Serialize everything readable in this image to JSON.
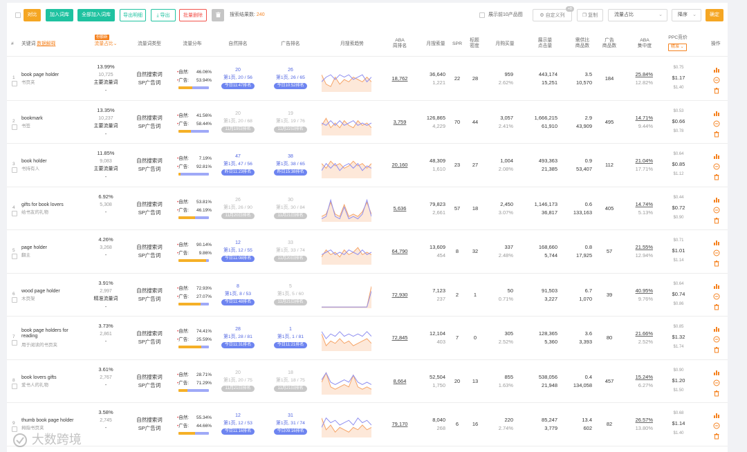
{
  "toolbar": {
    "compare": "对比",
    "add_to_lib": "加入词库",
    "add_all_to_lib": "全部加入词库",
    "export_detail": "导出明细",
    "export": "导出",
    "batch_delete": "批量删除",
    "result_label": "搜索结果数:",
    "result_count": "240",
    "top10_label": "展示前10产品图",
    "custom_col": "自定义列",
    "custom_col_badge": "+8",
    "copy": "复制",
    "sort_field": "流量占比",
    "sort_order": "降序",
    "confirm": "确定"
  },
  "header": {
    "num": "#",
    "keyword": "关键词",
    "data_explain": "数据解释",
    "share_tag": "份额新",
    "share": "流量占比",
    "type": "流量词类型",
    "distribution": "流量分布",
    "natural_rank": "自然排名",
    "ad_rank": "广告排名",
    "trend": "月搜索趋势",
    "aba_1": "ABA",
    "aba_2": "周排名",
    "monthly_search": "月搜索量",
    "spr": "SPR",
    "title_1": "标题",
    "title_2": "密度",
    "monthly_buy": "月购买量",
    "display_1": "展示量",
    "display_2": "点击量",
    "supply_1": "需供比",
    "supply_2": "商品数",
    "ads_1": "广告",
    "ads_2": "商品数",
    "abac_1": "ABA",
    "abac_2": "集中度",
    "ppc": "PPC竞价",
    "ppc_mode": "精准",
    "ops": "操作"
  },
  "rows": [
    {
      "num": "1",
      "kw": "book page holder",
      "kw_cn": "书页夹",
      "share": "13.99%",
      "share_sub": "10,725",
      "share_tag": "主要流量词",
      "share_dash": "-",
      "type1": "自然搜索词",
      "type2": "SP广告词",
      "nat_label": "自然:",
      "nat_pct": "46.06%",
      "ad_label": "广告:",
      "ad_pct": "53.94%",
      "nat_share": 0.46,
      "nr_pos": "20",
      "nr_line": "第1页, 20 / 56",
      "nr_pill": "今日11:47排名",
      "nr_active": true,
      "ar_pos": "26",
      "ar_line": "第1页, 26 / 65",
      "ar_pill": "今日10:52排名",
      "ar_active": true,
      "aba": "18,762",
      "ms": "36,640",
      "ms_sub": "1,221",
      "spr": "22",
      "title_d": "28",
      "mb": "959",
      "mb_pct": "2.62%",
      "disp": "443,174",
      "clk": "15,251",
      "sr": "3.5",
      "sr_n": "10,570",
      "ads": "184",
      "conc": "25.84%",
      "conc2": "12.82%",
      "ppc_h": "$0.75",
      "ppc": "$1.17",
      "ppc_l": "$1.40",
      "trend": [
        [
          0.7,
          0.3,
          0.2,
          0.6,
          0.3,
          0.5,
          0.4,
          0.6,
          0.5,
          0.4,
          0.6,
          0.4
        ],
        [
          0.4,
          0.6,
          0.7,
          0.5,
          0.7,
          0.6,
          0.7,
          0.5,
          0.6,
          0.7,
          0.4,
          0.6
        ]
      ]
    },
    {
      "num": "2",
      "kw": "bookmark",
      "kw_cn": "书签",
      "share": "13.35%",
      "share_sub": "10,237",
      "share_tag": "主要流量词",
      "share_dash": "-",
      "type1": "自然搜索词",
      "type2": "SP广告词",
      "nat_label": "自然:",
      "nat_pct": "41.56%",
      "ad_label": "广告:",
      "ad_pct": "58.44%",
      "nat_share": 0.42,
      "nr_pos": "20",
      "nr_line": "第1页, 20 / 68",
      "nr_pill": "11月19日排名",
      "nr_active": false,
      "ar_pos": "19",
      "ar_line": "第1页, 19 / 76",
      "ar_pill": "11月22日排名",
      "ar_active": false,
      "aba": "3,759",
      "ms": "126,865",
      "ms_sub": "4,229",
      "spr": "70",
      "title_d": "44",
      "mb": "3,057",
      "mb_pct": "2.41%",
      "disp": "1,666,215",
      "clk": "61,910",
      "sr": "2.9",
      "sr_n": "43,909",
      "ads": "495",
      "conc": "14.71%",
      "conc2": "9.44%",
      "ppc_h": "$0.53",
      "ppc": "$0.66",
      "ppc_l": "$0.78",
      "trend": [
        [
          0.4,
          0.7,
          0.3,
          0.5,
          0.3,
          0.6,
          0.4,
          0.3,
          0.6,
          0.4,
          0.5,
          0.3
        ],
        [
          0.5,
          0.4,
          0.6,
          0.4,
          0.6,
          0.4,
          0.5,
          0.6,
          0.4,
          0.5,
          0.4,
          0.5
        ]
      ]
    },
    {
      "num": "3",
      "kw": "book holder",
      "kw_cn": "书持有人",
      "share": "11.85%",
      "share_sub": "9,083",
      "share_tag": "主要流量词",
      "share_dash": "-",
      "type1": "自然搜索词",
      "type2": "SP广告词",
      "nat_label": "自然:",
      "nat_pct": "7.19%",
      "ad_label": "广告:",
      "ad_pct": "92.81%",
      "nat_share": 0.07,
      "nr_pos": "47",
      "nr_line": "第1页, 47 / 56",
      "nr_pill": "昨日11:23排名",
      "nr_active": true,
      "ar_pos": "38",
      "ar_line": "第1页, 38 / 65",
      "ar_pill": "昨日15:38排名",
      "ar_active": true,
      "aba": "20,160",
      "ms": "48,309",
      "ms_sub": "1,610",
      "spr": "23",
      "title_d": "27",
      "mb": "1,004",
      "mb_pct": "2.08%",
      "disp": "493,363",
      "clk": "21,385",
      "sr": "0.9",
      "sr_n": "53,407",
      "ads": "112",
      "conc": "21.04%",
      "conc2": "17.71%",
      "ppc_h": "$0.64",
      "ppc": "$0.85",
      "ppc_l": "$1.12",
      "trend": [
        [
          0.6,
          0.4,
          0.7,
          0.5,
          0.6,
          0.4,
          0.5,
          0.7,
          0.5,
          0.6,
          0.4,
          0.6
        ],
        [
          0.3,
          0.6,
          0.4,
          0.6,
          0.3,
          0.5,
          0.6,
          0.4,
          0.6,
          0.3,
          0.5,
          0.4
        ]
      ]
    },
    {
      "num": "4",
      "kw": "gifts for book lovers",
      "kw_cn": "给书友的礼物",
      "share": "6.92%",
      "share_sub": "5,308",
      "share_tag": "-",
      "share_dash": "",
      "type1": "自然搜索词",
      "type2": "SP广告词",
      "nat_label": "自然:",
      "nat_pct": "53.81%",
      "ad_label": "广告:",
      "ad_pct": "46.19%",
      "nat_share": 0.54,
      "nr_pos": "26",
      "nr_line": "第1页, 26 / 90",
      "nr_pill": "11月20日排名",
      "nr_active": false,
      "ar_pos": "30",
      "ar_line": "第1页, 30 / 84",
      "ar_pill": "11月21日排名",
      "ar_active": false,
      "aba": "5,636",
      "ms": "79,823",
      "ms_sub": "2,661",
      "spr": "57",
      "title_d": "18",
      "mb": "2,450",
      "mb_pct": "3.07%",
      "disp": "1,146,173",
      "clk": "36,817",
      "sr": "0.6",
      "sr_n": "133,163",
      "ads": "405",
      "conc": "14.74%",
      "conc2": "5.13%",
      "ppc_h": "$0.44",
      "ppc": "$0.72",
      "ppc_l": "$0.90",
      "trend": [
        [
          0.2,
          0.3,
          0.8,
          0.3,
          0.2,
          0.7,
          0.2,
          0.3,
          0.2,
          0.4,
          0.8,
          0.3
        ],
        [
          0.1,
          0.2,
          0.9,
          0.2,
          0.1,
          0.6,
          0.1,
          0.2,
          0.1,
          0.3,
          0.9,
          0.2
        ]
      ]
    },
    {
      "num": "5",
      "kw": "page holder",
      "kw_cn": "翻主",
      "share": "4.26%",
      "share_sub": "3,268",
      "share_tag": "-",
      "share_dash": "",
      "type1": "自然搜索词",
      "type2": "SP广告词",
      "nat_label": "自然:",
      "nat_pct": "90.14%",
      "ad_label": "广告:",
      "ad_pct": "9.86%",
      "nat_share": 0.9,
      "nr_pos": "12",
      "nr_line": "第1页, 12 / 55",
      "nr_pill": "今日11:08排名",
      "nr_active": true,
      "ar_pos": "33",
      "ar_line": "第1页, 33 / 74",
      "ar_pill": "11月20日排名",
      "ar_active": false,
      "aba": "64,790",
      "ms": "13,609",
      "ms_sub": "454",
      "spr": "8",
      "title_d": "32",
      "mb": "337",
      "mb_pct": "2.48%",
      "disp": "168,660",
      "clk": "5,744",
      "sr": "0.8",
      "sr_n": "17,925",
      "ads": "57",
      "conc": "21.55%",
      "conc2": "12.94%",
      "ppc_h": "$0.71",
      "ppc": "$1.01",
      "ppc_l": "$1.14",
      "trend": [
        [
          0.3,
          0.6,
          0.4,
          0.5,
          0.3,
          0.6,
          0.4,
          0.5,
          0.7,
          0.4,
          0.5,
          0.4
        ],
        [
          0.4,
          0.5,
          0.6,
          0.4,
          0.5,
          0.4,
          0.6,
          0.5,
          0.4,
          0.6,
          0.4,
          0.5
        ]
      ]
    },
    {
      "num": "6",
      "kw": "wood page holder",
      "kw_cn": "木页架",
      "share": "3.91%",
      "share_sub": "2,997",
      "share_tag": "精准流量词",
      "share_dash": "-",
      "type1": "自然搜索词",
      "type2": "SP广告词",
      "nat_label": "自然:",
      "nat_pct": "72.93%",
      "ad_label": "广告:",
      "ad_pct": "27.07%",
      "nat_share": 0.73,
      "nr_pos": "8",
      "nr_line": "第1页, 8 / 53",
      "nr_pill": "今日11:48排名",
      "nr_active": true,
      "ar_pos": "5",
      "ar_line": "第1页, 5 / 60",
      "ar_pill": "11月21日排名",
      "ar_active": false,
      "aba": "72,930",
      "ms": "7,123",
      "ms_sub": "237",
      "spr": "2",
      "title_d": "1",
      "mb": "50",
      "mb_pct": "0.71%",
      "disp": "91,503",
      "clk": "3,227",
      "sr": "6.7",
      "sr_n": "1,070",
      "ads": "39",
      "conc": "40.95%",
      "conc2": "9.76%",
      "ppc_h": "$0.64",
      "ppc": "$0.74",
      "ppc_l": "$0.86",
      "trend": [
        [
          0.02,
          0.02,
          0.02,
          0.02,
          0.02,
          0.02,
          0.02,
          0.02,
          0.02,
          0.02,
          0.03,
          0.9
        ],
        [
          0.02,
          0.02,
          0.02,
          0.02,
          0.02,
          0.02,
          0.02,
          0.02,
          0.02,
          0.02,
          0.02,
          0.7
        ]
      ]
    },
    {
      "num": "7",
      "kw": "book page holders for reading",
      "kw_cn": "用于阅读的书页夹",
      "share": "3.73%",
      "share_sub": "2,861",
      "share_tag": "-",
      "share_dash": "",
      "type1": "自然搜索词",
      "type2": "SP广告词",
      "nat_label": "自然:",
      "nat_pct": "74.41%",
      "ad_label": "广告:",
      "ad_pct": "25.59%",
      "nat_share": 0.74,
      "nr_pos": "28",
      "nr_line": "第1页, 28 / 81",
      "nr_pill": "今日11:31排名",
      "nr_active": true,
      "ar_pos": "1",
      "ar_line": "第1页, 1 / 81",
      "ar_pill": "今日11:21排名",
      "ar_active": true,
      "aba": "72,845",
      "ms": "12,104",
      "ms_sub": "403",
      "spr": "7",
      "title_d": "0",
      "mb": "305",
      "mb_pct": "2.52%",
      "disp": "128,365",
      "clk": "5,360",
      "sr": "3.6",
      "sr_n": "3,393",
      "ads": "80",
      "conc": "21.66%",
      "conc2": "2.52%",
      "ppc_h": "$0.85",
      "ppc": "$1.32",
      "ppc_l": "$1.74",
      "trend": [
        [
          0.7,
          0.2,
          0.4,
          0.3,
          0.5,
          0.3,
          0.4,
          0.2,
          0.3,
          0.4,
          0.5,
          0.3
        ],
        [
          0.8,
          0.5,
          0.7,
          0.6,
          0.8,
          0.6,
          0.7,
          0.6,
          0.7,
          0.6,
          0.8,
          0.6
        ]
      ]
    },
    {
      "num": "8",
      "kw": "book lovers gifts",
      "kw_cn": "爱书人的礼物",
      "share": "3.61%",
      "share_sub": "2,767",
      "share_tag": "-",
      "share_dash": "",
      "type1": "自然搜索词",
      "type2": "SP广告词",
      "nat_label": "自然:",
      "nat_pct": "28.71%",
      "ad_label": "广告:",
      "ad_pct": "71.29%",
      "nat_share": 0.29,
      "nr_pos": "20",
      "nr_line": "第1页, 20 / 75",
      "nr_pill": "11月21日排名",
      "nr_active": false,
      "ar_pos": "18",
      "ar_line": "第1页, 18 / 75",
      "ar_pill": "11月21日排名",
      "ar_active": false,
      "aba": "8,664",
      "ms": "52,504",
      "ms_sub": "1,750",
      "spr": "20",
      "title_d": "13",
      "mb": "855",
      "mb_pct": "1.63%",
      "disp": "538,056",
      "clk": "21,948",
      "sr": "0.4",
      "sr_n": "134,058",
      "ads": "457",
      "conc": "15.24%",
      "conc2": "6.27%",
      "ppc_h": "$0.90",
      "ppc": "$1.20",
      "ppc_l": "$1.50",
      "trend": [
        [
          0.5,
          0.9,
          0.3,
          0.2,
          0.3,
          0.4,
          0.3,
          0.8,
          0.3,
          0.2,
          0.3,
          0.2
        ],
        [
          0.6,
          0.9,
          0.5,
          0.4,
          0.5,
          0.6,
          0.5,
          0.8,
          0.5,
          0.4,
          0.5,
          0.4
        ]
      ]
    },
    {
      "num": "9",
      "kw": "thumb book page holder",
      "kw_cn": "拇指书页夹",
      "share": "3.58%",
      "share_sub": "2,745",
      "share_tag": "-",
      "share_dash": "",
      "type1": "自然搜索词",
      "type2": "SP广告词",
      "nat_label": "自然:",
      "nat_pct": "55.34%",
      "ad_label": "广告:",
      "ad_pct": "44.66%",
      "nat_share": 0.55,
      "nr_pos": "12",
      "nr_line": "第1页, 12 / 53",
      "nr_pill": "今日11:16排名",
      "nr_active": true,
      "ar_pos": "31",
      "ar_line": "第1页, 31 / 74",
      "ar_pill": "今日09:16排名",
      "ar_active": true,
      "aba": "79,170",
      "ms": "8,040",
      "ms_sub": "268",
      "spr": "6",
      "title_d": "16",
      "mb": "220",
      "mb_pct": "2.74%",
      "disp": "85,247",
      "clk": "3,779",
      "sr": "13.4",
      "sr_n": "602",
      "ads": "82",
      "conc": "26.57%",
      "conc2": "13.80%",
      "ppc_h": "$0.68",
      "ppc": "$1.14",
      "ppc_l": "$1.40",
      "trend": [
        [
          0.8,
          0.3,
          0.5,
          0.2,
          0.4,
          0.3,
          0.2,
          0.4,
          0.3,
          0.5,
          0.3,
          0.4
        ],
        [
          0.4,
          0.8,
          0.6,
          0.7,
          0.5,
          0.6,
          0.7,
          0.5,
          0.8,
          0.6,
          0.7,
          0.5
        ]
      ]
    }
  ],
  "colors": {
    "orange": "#f5a623",
    "green": "#1fc2a0",
    "red": "#f2524b",
    "blue": "#4e63e0",
    "trend_orange": "#f6a467",
    "trend_purple": "#8f8ff0"
  },
  "watermark": "大数跨境"
}
